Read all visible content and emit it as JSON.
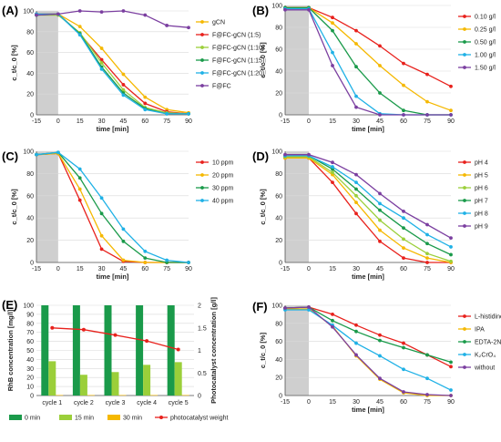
{
  "figure": {
    "panels": [
      {
        "id": "A",
        "label": "(A)",
        "chart_data": {
          "type": "line",
          "x": [
            -15,
            0,
            15,
            30,
            45,
            60,
            75,
            90
          ],
          "xlabel": "time [min]",
          "ylabel": "c_t/c_0 [%]",
          "xticks": [
            "-15",
            "0",
            "15",
            "30",
            "45",
            "60",
            "75",
            "90"
          ],
          "yticks": [
            "0",
            "20",
            "40",
            "60",
            "80",
            "100"
          ],
          "ylim": [
            0,
            100
          ],
          "shaded_region": [
            -15,
            0
          ],
          "legend_position": "right",
          "series": [
            {
              "name": "gCN",
              "color": "#f5b800",
              "values": [
                97,
                97,
                85,
                64,
                39,
                17,
                5,
                2
              ]
            },
            {
              "name": "F@FC-gCN (1:5)",
              "color": "#e8211c",
              "values": [
                97,
                97,
                78,
                53,
                29,
                11,
                3,
                1
              ]
            },
            {
              "name": "F@FC-gCN (1:10)",
              "color": "#9bcf3a",
              "values": [
                96,
                96,
                79,
                50,
                24,
                7,
                2,
                1
              ]
            },
            {
              "name": "F@FC-gCN (1:15)",
              "color": "#1a9a4a",
              "values": [
                96,
                97,
                78,
                46,
                21,
                6,
                1,
                1
              ]
            },
            {
              "name": "F@FC-gCN (1:20)",
              "color": "#1fb1e6",
              "values": [
                97,
                97,
                77,
                44,
                19,
                5,
                1,
                1
              ]
            },
            {
              "name": "F@FC",
              "color": "#7b3fa0",
              "values": [
                96,
                97,
                100,
                99,
                100,
                96,
                86,
                84
              ]
            }
          ]
        }
      },
      {
        "id": "B",
        "label": "(B)",
        "chart_data": {
          "type": "line",
          "x": [
            -15,
            0,
            15,
            30,
            45,
            60,
            75,
            90
          ],
          "xlabel": "time [min]",
          "ylabel": "c_t/c_0 [%]",
          "xticks": [
            "-15",
            "0",
            "15",
            "30",
            "45",
            "60",
            "75",
            "90"
          ],
          "yticks": [
            "0",
            "20",
            "40",
            "60",
            "80",
            "100"
          ],
          "ylim": [
            0,
            100
          ],
          "shaded_region": [
            -15,
            0
          ],
          "legend_position": "right",
          "series": [
            {
              "name": "0.10 g/l",
              "color": "#e8211c",
              "values": [
                98,
                98,
                89,
                77,
                63,
                47,
                37,
                26
              ]
            },
            {
              "name": "0.25 g/l",
              "color": "#f5b800",
              "values": [
                98,
                98,
                84,
                65,
                45,
                27,
                12,
                4
              ]
            },
            {
              "name": "0.50 g/l",
              "color": "#1a9a4a",
              "values": [
                98,
                98,
                77,
                44,
                20,
                4,
                0,
                0
              ]
            },
            {
              "name": "1.00 g/l",
              "color": "#1fb1e6",
              "values": [
                97,
                97,
                57,
                17,
                1,
                0,
                0,
                0
              ]
            },
            {
              "name": "1.50 g/l",
              "color": "#7b3fa0",
              "values": [
                96,
                96,
                45,
                7,
                0,
                0,
                0,
                0
              ]
            }
          ]
        }
      },
      {
        "id": "C",
        "label": "(C)",
        "chart_data": {
          "type": "line",
          "x": [
            -15,
            0,
            15,
            30,
            45,
            60,
            75,
            90
          ],
          "xlabel": "time [min]",
          "ylabel": "c_t/c_0 [%]",
          "xticks": [
            "-15",
            "0",
            "15",
            "30",
            "45",
            "60",
            "75",
            "90"
          ],
          "yticks": [
            "0",
            "20",
            "40",
            "60",
            "80",
            "100"
          ],
          "ylim": [
            0,
            100
          ],
          "shaded_region": [
            -15,
            0
          ],
          "legend_position": "right",
          "series": [
            {
              "name": "10 ppm",
              "color": "#e8211c",
              "values": [
                97,
                98,
                56,
                12,
                1,
                0,
                0,
                0
              ]
            },
            {
              "name": "20 ppm",
              "color": "#f5b800",
              "values": [
                97,
                98,
                66,
                24,
                2,
                0,
                0,
                0
              ]
            },
            {
              "name": "30 ppm",
              "color": "#1a9a4a",
              "values": [
                97,
                99,
                76,
                44,
                19,
                4,
                0,
                0
              ]
            },
            {
              "name": "40 ppm",
              "color": "#1fb1e6",
              "values": [
                97,
                99,
                84,
                58,
                30,
                10,
                2,
                0
              ]
            }
          ]
        }
      },
      {
        "id": "D",
        "label": "(D)",
        "chart_data": {
          "type": "line",
          "x": [
            -15,
            0,
            15,
            30,
            45,
            60,
            75,
            90
          ],
          "xlabel": "time [min]",
          "ylabel": "c_t/c_0 [%]",
          "xticks": [
            "-15",
            "0",
            "15",
            "30",
            "45",
            "60",
            "75",
            "90"
          ],
          "yticks": [
            "0",
            "20",
            "40",
            "60",
            "80",
            "100"
          ],
          "ylim": [
            0,
            100
          ],
          "shaded_region": [
            -15,
            0
          ],
          "legend_position": "right",
          "series": [
            {
              "name": "pH 4",
              "color": "#e8211c",
              "values": [
                94,
                94,
                72,
                44,
                19,
                4,
                0,
                0
              ]
            },
            {
              "name": "pH 5",
              "color": "#f5b800",
              "values": [
                94,
                94,
                79,
                54,
                29,
                13,
                4,
                0
              ]
            },
            {
              "name": "pH 6",
              "color": "#9bcf3a",
              "values": [
                95,
                95,
                81,
                60,
                38,
                21,
                8,
                1
              ]
            },
            {
              "name": "pH 7",
              "color": "#1a9a4a",
              "values": [
                96,
                96,
                84,
                66,
                47,
                31,
                17,
                7
              ]
            },
            {
              "name": "pH 8",
              "color": "#1fb1e6",
              "values": [
                96,
                96,
                86,
                72,
                53,
                40,
                25,
                14
              ]
            },
            {
              "name": "pH 9",
              "color": "#7b3fa0",
              "values": [
                97,
                97,
                90,
                79,
                62,
                46,
                34,
                22
              ]
            }
          ]
        }
      },
      {
        "id": "E",
        "label": "(E)",
        "chart_data": {
          "type": "bar",
          "categories": [
            "cycle 1",
            "cycle 2",
            "cycle 3",
            "cycle 4",
            "cycle 5"
          ],
          "ylabel": "RhB concentration [mg/l]",
          "y2label": "Photocatalyst concentration [g/l]",
          "yticks": [
            "0",
            "10",
            "20",
            "30",
            "40",
            "50",
            "60",
            "70",
            "80",
            "90",
            "100"
          ],
          "ylim": [
            0,
            100
          ],
          "y2ticks": [
            "0",
            "0.5",
            "1",
            "1.5",
            "2"
          ],
          "y2lim": [
            0,
            2
          ],
          "legend_position": "bottom",
          "series": [
            {
              "name": "0 min",
              "color": "#1a9a4a",
              "values": [
                100,
                100,
                100,
                100,
                100
              ]
            },
            {
              "name": "15 min",
              "color": "#9bcf3a",
              "values": [
                38,
                23,
                26,
                34,
                37
              ]
            },
            {
              "name": "30 min",
              "color": "#f5b800",
              "values": [
                0.5,
                0.5,
                0.5,
                0.5,
                0.5
              ]
            }
          ],
          "line_series": {
            "name": "photocatalyst weight",
            "color": "#e8211c",
            "axis": "right",
            "values": [
              1.5,
              1.46,
              1.34,
              1.21,
              1.02
            ]
          }
        }
      },
      {
        "id": "F",
        "label": "(F)",
        "chart_data": {
          "type": "line",
          "x": [
            -15,
            0,
            15,
            30,
            45,
            60,
            75,
            90
          ],
          "xlabel": "time [min]",
          "ylabel": "c_t/c_0 [%]",
          "xticks": [
            "-15",
            "0",
            "15",
            "30",
            "45",
            "60",
            "75",
            "90"
          ],
          "yticks": [
            "0",
            "20",
            "40",
            "60",
            "80",
            "100"
          ],
          "ylim": [
            0,
            100
          ],
          "shaded_region": [
            -15,
            0
          ],
          "legend_position": "right",
          "series": [
            {
              "name": "L-histidine",
              "color": "#e8211c",
              "values": [
                97,
                98,
                90,
                78,
                67,
                58,
                45,
                32
              ]
            },
            {
              "name": "IPA",
              "color": "#f5b800",
              "values": [
                96,
                96,
                77,
                44,
                18,
                3,
                0,
                0
              ]
            },
            {
              "name": "EDTA-2Na",
              "color": "#1a9a4a",
              "values": [
                97,
                98,
                83,
                71,
                61,
                53,
                45,
                37
              ]
            },
            {
              "name": "K₂CrO₄",
              "color": "#1fb1e6",
              "values": [
                95,
                95,
                78,
                58,
                44,
                29,
                19,
                6
              ]
            },
            {
              "name": "without",
              "color": "#7b3fa0",
              "values": [
                97,
                98,
                76,
                45,
                19,
                4,
                1,
                0
              ]
            }
          ]
        }
      }
    ]
  }
}
